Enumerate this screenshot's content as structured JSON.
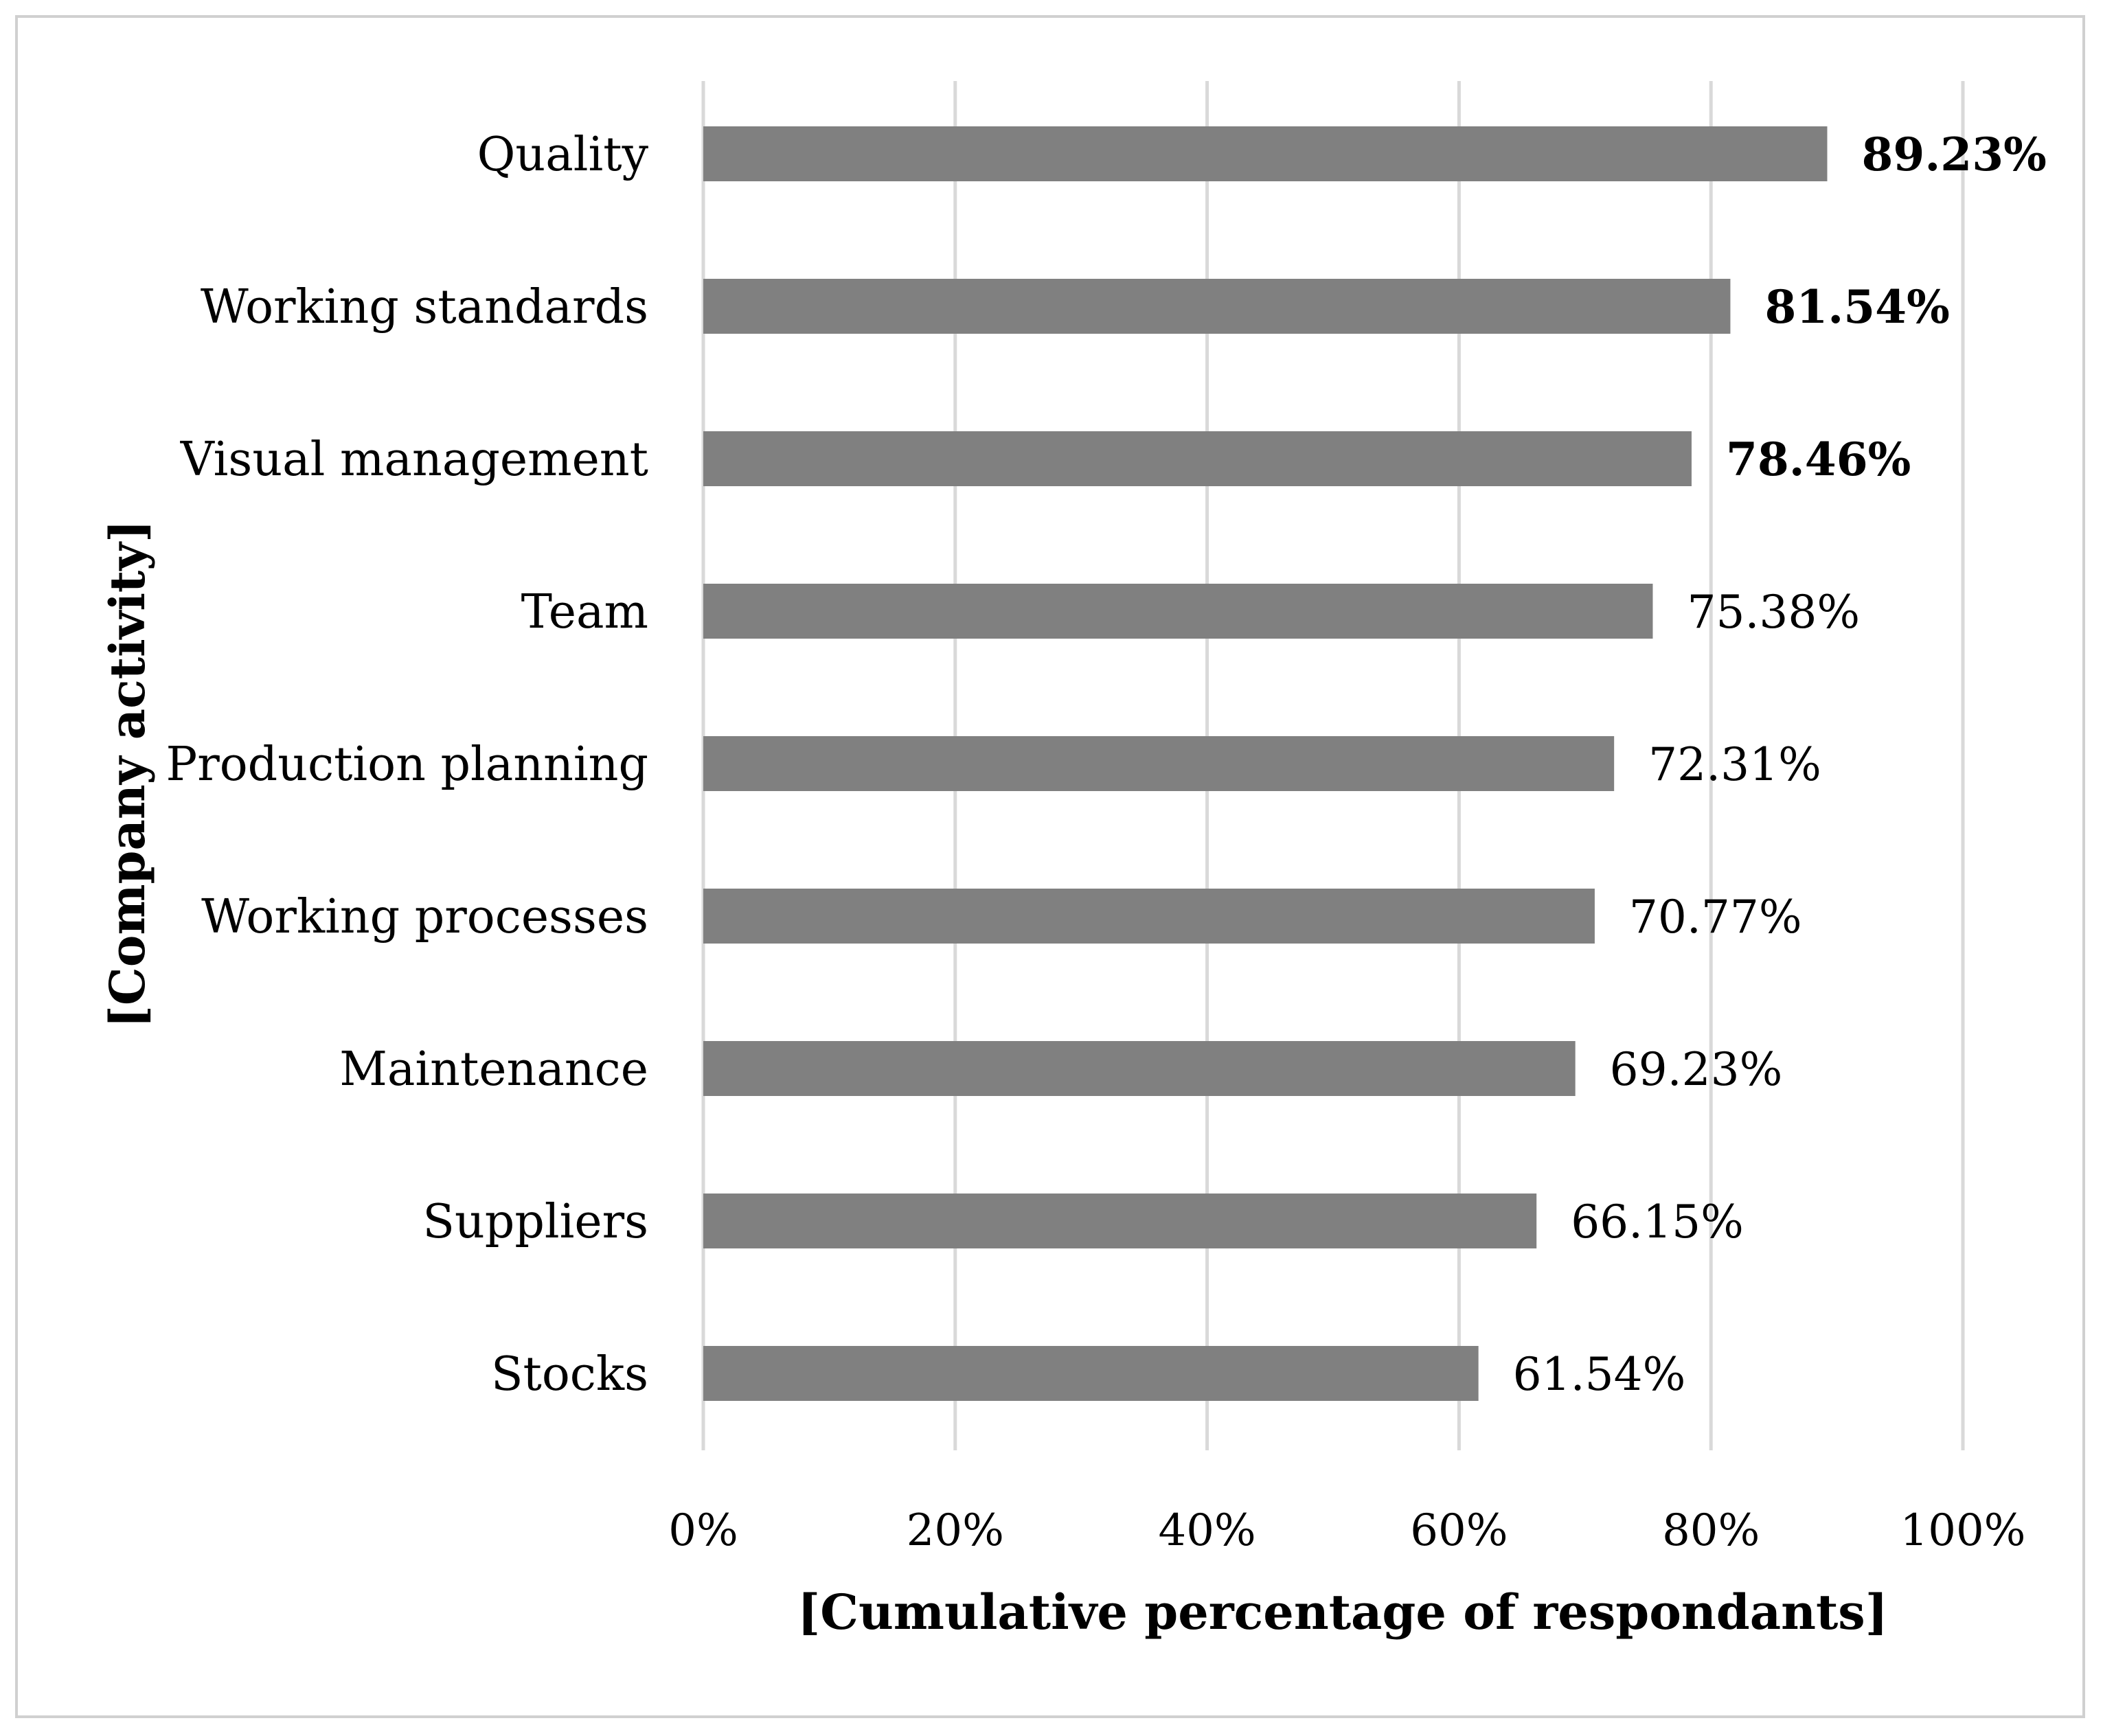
{
  "chart_data": {
    "type": "bar",
    "orientation": "horizontal",
    "title": "",
    "xlabel": "[Cumulative percentage of respondants]",
    "ylabel": "[Company activity]",
    "categories": [
      "Quality",
      "Working standards",
      "Visual management",
      "Team",
      "Production planning",
      "Working processes",
      "Maintenance",
      "Suppliers",
      "Stocks"
    ],
    "values": [
      89.23,
      81.54,
      78.46,
      75.38,
      72.31,
      70.77,
      69.23,
      66.15,
      61.54
    ],
    "value_labels": [
      "89.23%",
      "81.54%",
      "78.46%",
      "75.38%",
      "72.31%",
      "70.77%",
      "69.23%",
      "66.15%",
      "61.54%"
    ],
    "bold_labels": [
      true,
      true,
      true,
      false,
      false,
      false,
      false,
      false,
      false
    ],
    "xlim": [
      0,
      100
    ],
    "xticks": [
      0,
      20,
      40,
      60,
      80,
      100
    ],
    "xtick_labels": [
      "0%",
      "20%",
      "40%",
      "60%",
      "80%",
      "100%"
    ],
    "grid": "vertical",
    "legend": "none",
    "colors": {
      "bar": "#808080",
      "grid": "#d9d9d9",
      "frame": "#d0d0d0",
      "text": "#000000"
    }
  }
}
